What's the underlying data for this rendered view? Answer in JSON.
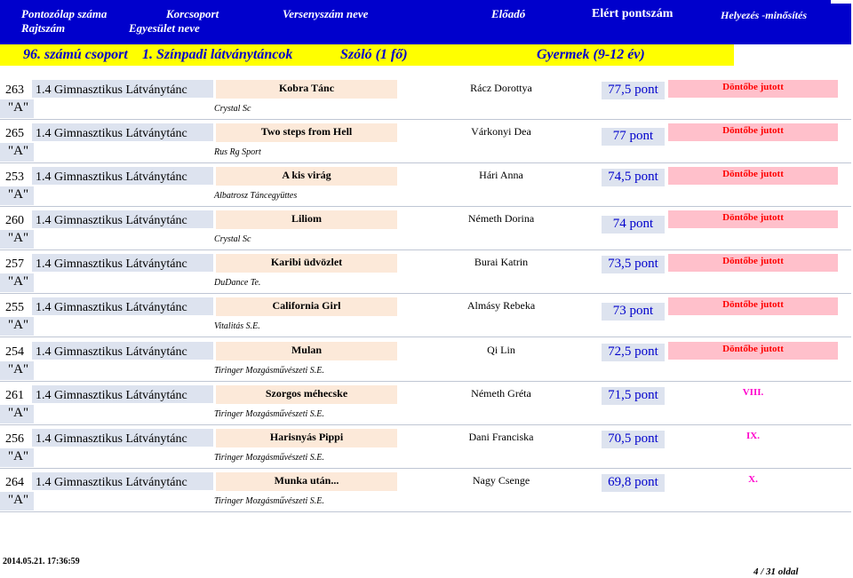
{
  "header": {
    "col1_line1": "Pontozólap száma",
    "col1_line2": "Rajtszám",
    "col2_line1": "Korcsoport",
    "col2_line2": "Egyesület neve",
    "col3": "Versenyszám neve",
    "col4": "Előadó",
    "col5": "Elért pontszám",
    "col6": "Helyezés -minősítés"
  },
  "group": {
    "number": "96. számú csoport",
    "category": "1. Színpadi látványtáncok",
    "format": "Szóló (1 fő)",
    "age_group": "Gyermek (9-12 év)"
  },
  "entries": [
    {
      "num": "263",
      "category": "1.4 Gimnasztikus Látványtánc",
      "level": "\"A\"",
      "title": "Kobra Tánc",
      "club": "Crystal Sc",
      "performer": "Rácz Dorottya",
      "score": "77,5 pont",
      "result": "Döntőbe jutott"
    },
    {
      "num": "265",
      "category": "1.4 Gimnasztikus Látványtánc",
      "level": "\"A\"",
      "title": "Two steps from Hell",
      "club": "Rus Rg Sport",
      "performer": "Várkonyi Dea",
      "score": "77 pont",
      "result": "Döntőbe jutott"
    },
    {
      "num": "253",
      "category": "1.4 Gimnasztikus Látványtánc",
      "level": "\"A\"",
      "title": "A kis virág",
      "club": "Albatrosz Táncegyüttes",
      "performer": "Hári Anna",
      "score": "74,5 pont",
      "result": "Döntőbe jutott"
    },
    {
      "num": "260",
      "category": "1.4 Gimnasztikus Látványtánc",
      "level": "\"A\"",
      "title": "Liliom",
      "club": "Crystal Sc",
      "performer": "Németh Dorina",
      "score": "74 pont",
      "result": "Döntőbe jutott"
    },
    {
      "num": "257",
      "category": "1.4 Gimnasztikus Látványtánc",
      "level": "\"A\"",
      "title": "Karibi üdvözlet",
      "club": "DuDance Te.",
      "performer": "Burai Katrin",
      "score": "73,5 pont",
      "result": "Döntőbe jutott"
    },
    {
      "num": "255",
      "category": "1.4 Gimnasztikus Látványtánc",
      "level": "\"A\"",
      "title": "California Girl",
      "club": "Vitalitás S.E.",
      "performer": "Almásy Rebeka",
      "score": "73 pont",
      "result": "Döntőbe jutott"
    },
    {
      "num": "254",
      "category": "1.4 Gimnasztikus Látványtánc",
      "level": "\"A\"",
      "title": "Mulan",
      "club": "Tiringer Mozgásművészeti S.E.",
      "performer": "Qi Lin",
      "score": "72,5 pont",
      "result": "Döntőbe jutott"
    },
    {
      "num": "261",
      "category": "1.4 Gimnasztikus Látványtánc",
      "level": "\"A\"",
      "title": "Szorgos méhecske",
      "club": "Tiringer Mozgásművészeti S.E.",
      "performer": "Németh Gréta",
      "score": "71,5 pont",
      "result": "VIII."
    },
    {
      "num": "256",
      "category": "1.4 Gimnasztikus Látványtánc",
      "level": "\"A\"",
      "title": "Harisnyás Pippi",
      "club": "Tiringer Mozgásművészeti S.E.",
      "performer": "Dani Franciska",
      "score": "70,5 pont",
      "result": "IX."
    },
    {
      "num": "264",
      "category": "1.4 Gimnasztikus Látványtánc",
      "level": "\"A\"",
      "title": "Munka után...",
      "club": "Tiringer Mozgásművészeti S.E.",
      "performer": "Nagy Csenge",
      "score": "69,8 pont",
      "result": "X."
    }
  ],
  "footer": {
    "timestamp": "2014.05.21. 17:36:59",
    "page": "4 / 31 oldal"
  },
  "colors": {
    "header_bg": "#0000cc",
    "group_bg": "#ffff00",
    "qualified_text": "#ff0000",
    "placement_text": "#ff00cc",
    "score_text": "#0000cc"
  }
}
